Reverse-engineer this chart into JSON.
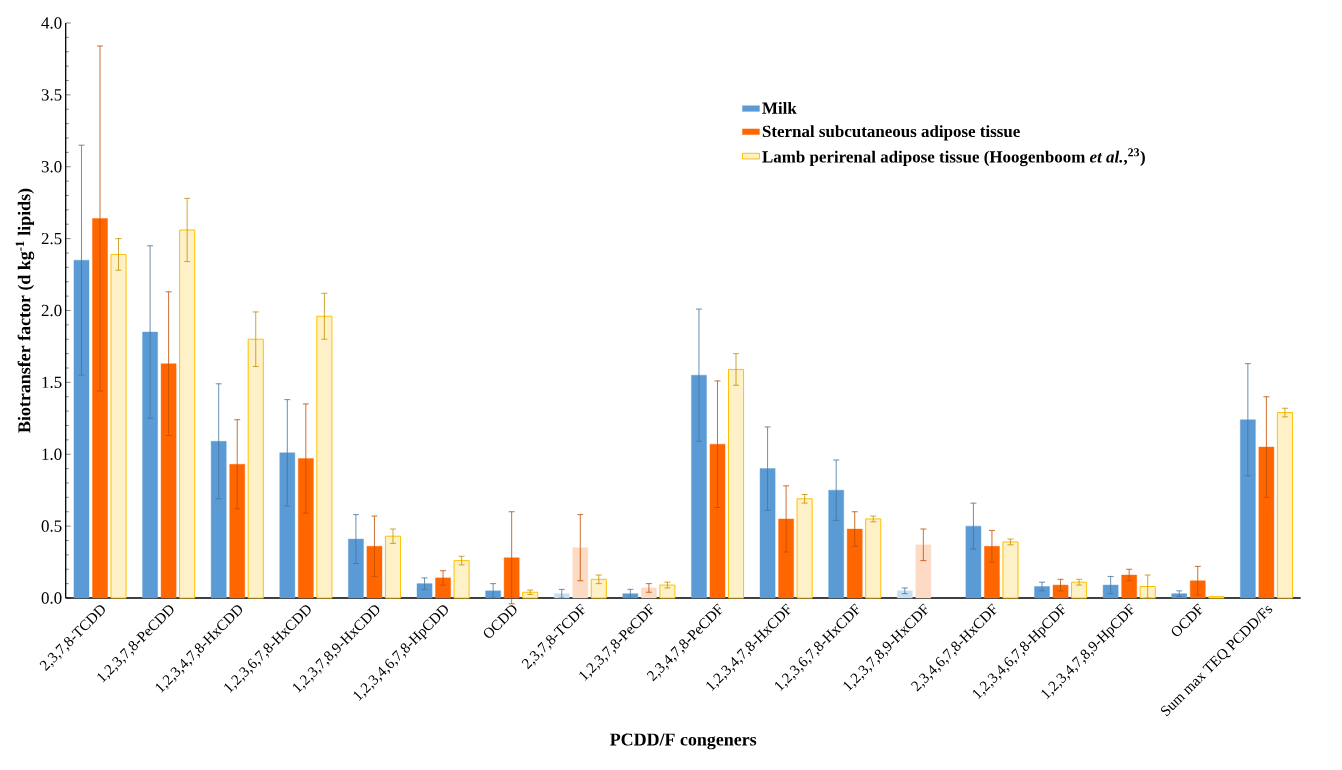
{
  "chart_data": {
    "type": "bar",
    "xlabel": "PCDD/F congeners",
    "ylabel": "Biotransfer factor (d kg$^{-1}$ lipids)",
    "categories": [
      "2,3,7,8-TCDD",
      "1,2,3,7,8-PeCDD",
      "1,2,3,4,7,8-HxCDD",
      "1,2,3,6,7,8-HxCDD",
      "1,2,3,7,8,9-HxCDD",
      "1,2,3,4,6,7,8-HpCDD",
      "OCDD",
      "2,3,7,8-TCDF",
      "1,2,3,7,8-PeCDF",
      "2,3,4,7,8-PeCDF",
      "1,2,3,4,7,8-HxCDF",
      "1,2,3,6,7,8-HxCDF",
      "1,2,3,7,8,9-HxCDF",
      "2,3,4,6,7,8-HxCDF",
      "1,2,3,4,6,7,8-HpCDF",
      "1,2,3,4,7,8,9-HpCDF",
      "OCDF",
      "Sum max TEQ PCDD/Fs"
    ],
    "series": [
      {
        "name": "Milk",
        "color": "#5b9bd5",
        "colors": [
          "#5b9bd5",
          "#5b9bd5",
          "#5b9bd5",
          "#5b9bd5",
          "#5b9bd5",
          "#5b9bd5",
          "#5b9bd5",
          "#c9def1",
          "#5b9bd5",
          "#5b9bd5",
          "#5b9bd5",
          "#5b9bd5",
          "#c9def1",
          "#5b9bd5",
          "#5b9bd5",
          "#5b9bd5",
          "#5b9bd5",
          "#5b9bd5"
        ],
        "values": [
          2.35,
          1.85,
          1.09,
          1.01,
          0.41,
          0.1,
          0.05,
          0.03,
          0.03,
          1.55,
          0.9,
          0.75,
          0.05,
          0.5,
          0.08,
          0.09,
          0.03,
          1.24
        ],
        "errors": [
          0.8,
          0.6,
          0.4,
          0.37,
          0.17,
          0.04,
          0.05,
          0.03,
          0.03,
          0.46,
          0.29,
          0.21,
          0.02,
          0.16,
          0.03,
          0.06,
          0.02,
          0.39
        ]
      },
      {
        "name": "Sternal subcutaneous adipose tissue",
        "color": "#ff6600",
        "colors": [
          "#ff6600",
          "#ff6600",
          "#ff6600",
          "#ff6600",
          "#ff6600",
          "#ff6600",
          "#ff6600",
          "#fddac4",
          "#fddac4",
          "#ff6600",
          "#ff6600",
          "#ff6600",
          "#fddac4",
          "#ff6600",
          "#ff6600",
          "#ff6600",
          "#ff6600",
          "#ff6600"
        ],
        "values": [
          2.64,
          1.63,
          0.93,
          0.97,
          0.36,
          0.14,
          0.28,
          0.35,
          0.07,
          1.07,
          0.55,
          0.48,
          0.37,
          0.36,
          0.09,
          0.16,
          0.12,
          1.05
        ],
        "errors": [
          1.2,
          0.5,
          0.31,
          0.38,
          0.21,
          0.05,
          0.32,
          0.23,
          0.03,
          0.44,
          0.23,
          0.12,
          0.11,
          0.11,
          0.04,
          0.04,
          0.1,
          0.35
        ]
      },
      {
        "name": "Lamb perirenal adipose tissue (Hoogenboom *et al.*,$^{23}$)",
        "color": "#ffc000",
        "values": [
          2.39,
          2.56,
          1.8,
          1.96,
          0.43,
          0.26,
          0.04,
          0.13,
          0.09,
          1.59,
          0.69,
          0.55,
          null,
          0.39,
          0.11,
          0.08,
          0.01,
          1.29
        ],
        "errors": [
          0.11,
          0.22,
          0.19,
          0.16,
          0.05,
          0.03,
          0.015,
          0.03,
          0.02,
          0.11,
          0.03,
          0.02,
          null,
          0.02,
          0.02,
          0.08,
          null,
          0.03
        ]
      }
    ],
    "ylim": [
      0,
      4
    ],
    "yticks": [
      {
        "value": 0,
        "label": "0.0"
      },
      {
        "value": 0.5,
        "label": "0.5"
      },
      {
        "value": 1,
        "label": "1.0"
      },
      {
        "value": 1.5,
        "label": "1.5"
      },
      {
        "value": 2,
        "label": "2.0"
      },
      {
        "value": 2.5,
        "label": "2.5"
      },
      {
        "value": 3,
        "label": "3.0"
      },
      {
        "value": 3.5,
        "label": "3.5"
      },
      {
        "value": 4,
        "label": "4.0"
      }
    ],
    "grid": false,
    "legend": "top right"
  }
}
